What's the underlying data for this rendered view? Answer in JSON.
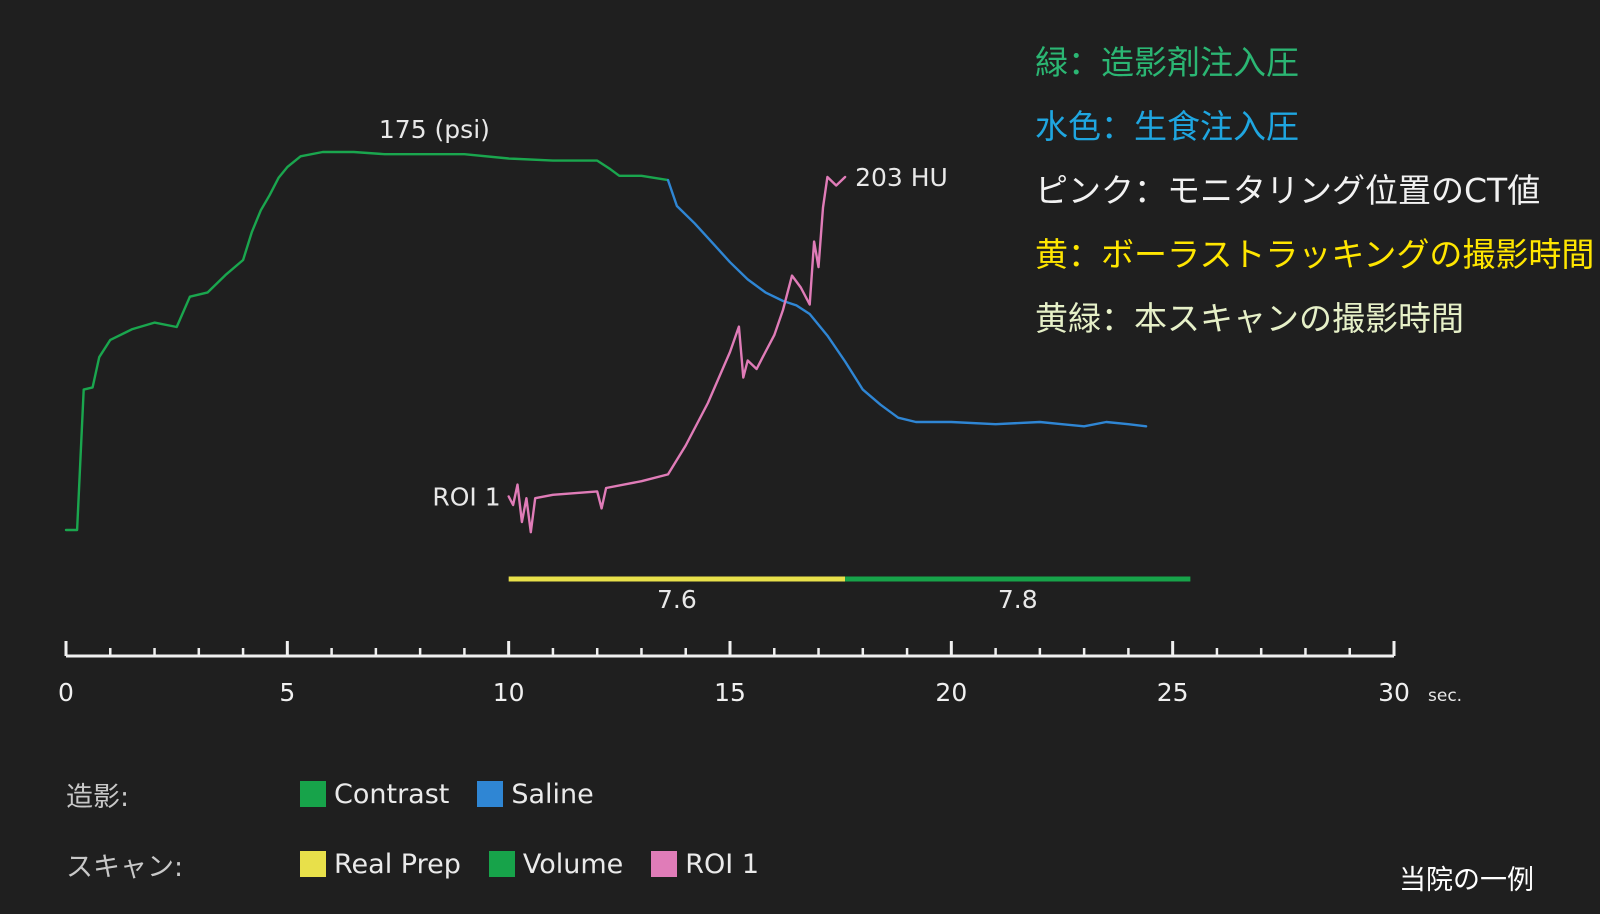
{
  "annotations": [
    {
      "text": "緑：造影剤注入圧",
      "color": "#2bb673"
    },
    {
      "text": "水色：生食注入圧",
      "color": "#1fa6e0"
    },
    {
      "text": "ピンク：モニタリング位置のCT値",
      "color": "#f2f2f2"
    },
    {
      "text": "黄：ボーラストラッキングの撮影時間",
      "color": "#ffe600"
    },
    {
      "text": "黄緑：本スキャンの撮影時間",
      "color": "#e6f0c8"
    }
  ],
  "legend": {
    "contrast_row_label": "造影:",
    "scan_row_label": "スキャン:",
    "contrast_items": [
      {
        "label": "Contrast",
        "color": "#17a34a"
      },
      {
        "label": "Saline",
        "color": "#2f86d4"
      }
    ],
    "scan_items": [
      {
        "label": "Real Prep",
        "color": "#e8e04a"
      },
      {
        "label": "Volume",
        "color": "#17a34a"
      },
      {
        "label": "ROI 1",
        "color": "#e07cb8"
      }
    ]
  },
  "footnote": "当院の一例",
  "chart_data": {
    "type": "line",
    "title": "",
    "xlabel": "sec.",
    "ylabel": "",
    "xlim": [
      0,
      30
    ],
    "x_ticks": [
      0,
      5,
      10,
      15,
      20,
      25,
      30
    ],
    "grid": false,
    "pressure_ylim": [
      0,
      220
    ],
    "hu_ylim": [
      -20,
      235
    ],
    "series": [
      {
        "name": "Contrast",
        "color": "#1aa64e",
        "axis": "pressure",
        "points": [
          [
            0,
            0
          ],
          [
            0.25,
            0
          ],
          [
            0.4,
            65
          ],
          [
            0.6,
            66
          ],
          [
            0.75,
            80
          ],
          [
            1.0,
            88
          ],
          [
            1.5,
            93
          ],
          [
            2.0,
            96
          ],
          [
            2.5,
            94
          ],
          [
            2.8,
            108
          ],
          [
            3.2,
            110
          ],
          [
            3.6,
            118
          ],
          [
            4.0,
            125
          ],
          [
            4.2,
            138
          ],
          [
            4.4,
            148
          ],
          [
            4.6,
            155
          ],
          [
            4.8,
            163
          ],
          [
            5.0,
            168
          ],
          [
            5.3,
            173
          ],
          [
            5.8,
            175
          ],
          [
            6.5,
            175
          ],
          [
            7.2,
            174
          ],
          [
            8.0,
            174
          ],
          [
            9.0,
            174
          ],
          [
            10.0,
            172
          ],
          [
            11.0,
            171
          ],
          [
            12.0,
            171
          ],
          [
            12.3,
            167
          ],
          [
            12.5,
            164
          ],
          [
            13.0,
            164
          ],
          [
            13.6,
            162
          ]
        ]
      },
      {
        "name": "Saline",
        "color": "#2f86d4",
        "axis": "pressure",
        "points": [
          [
            13.6,
            162
          ],
          [
            13.8,
            150
          ],
          [
            14.2,
            142
          ],
          [
            14.6,
            133
          ],
          [
            15.0,
            124
          ],
          [
            15.4,
            116
          ],
          [
            15.8,
            110
          ],
          [
            16.2,
            106
          ],
          [
            16.5,
            104
          ],
          [
            16.8,
            100
          ],
          [
            17.2,
            90
          ],
          [
            17.6,
            78
          ],
          [
            18.0,
            65
          ],
          [
            18.4,
            58
          ],
          [
            18.8,
            52
          ],
          [
            19.2,
            50
          ],
          [
            20.0,
            50
          ],
          [
            21.0,
            49
          ],
          [
            22.0,
            50
          ],
          [
            22.5,
            49
          ],
          [
            23.0,
            48
          ],
          [
            23.5,
            50
          ],
          [
            24.0,
            49
          ],
          [
            24.4,
            48
          ]
        ]
      },
      {
        "name": "ROI 1",
        "color": "#e07cb8",
        "axis": "hu",
        "points": [
          [
            10.0,
            15
          ],
          [
            10.1,
            10
          ],
          [
            10.2,
            22
          ],
          [
            10.3,
            0
          ],
          [
            10.4,
            14
          ],
          [
            10.5,
            -6
          ],
          [
            10.6,
            14
          ],
          [
            11.0,
            16
          ],
          [
            12.0,
            18
          ],
          [
            12.1,
            8
          ],
          [
            12.2,
            20
          ],
          [
            13.0,
            24
          ],
          [
            13.6,
            28
          ],
          [
            14.0,
            45
          ],
          [
            14.5,
            70
          ],
          [
            15.0,
            100
          ],
          [
            15.2,
            115
          ],
          [
            15.3,
            85
          ],
          [
            15.4,
            95
          ],
          [
            15.6,
            90
          ],
          [
            15.8,
            100
          ],
          [
            16.0,
            110
          ],
          [
            16.2,
            125
          ],
          [
            16.4,
            145
          ],
          [
            16.6,
            138
          ],
          [
            16.8,
            128
          ],
          [
            16.9,
            165
          ],
          [
            17.0,
            150
          ],
          [
            17.1,
            185
          ],
          [
            17.2,
            203
          ],
          [
            17.4,
            198
          ],
          [
            17.6,
            203
          ]
        ]
      }
    ],
    "bars": [
      {
        "name": "Real Prep",
        "start": 10.0,
        "end": 17.6,
        "value_label": "7.6",
        "color": "#e8e04a"
      },
      {
        "name": "Volume",
        "start": 17.6,
        "end": 25.4,
        "value_label": "7.8",
        "color": "#17a34a"
      }
    ],
    "annotations": [
      {
        "text": "175 (psi)",
        "at": [
          9.0,
          174
        ],
        "axis": "pressure"
      },
      {
        "text": "203 HU",
        "at": [
          17.6,
          203
        ],
        "axis": "hu"
      },
      {
        "text": "ROI 1",
        "at": [
          10.0,
          15
        ],
        "axis": "hu"
      }
    ]
  }
}
